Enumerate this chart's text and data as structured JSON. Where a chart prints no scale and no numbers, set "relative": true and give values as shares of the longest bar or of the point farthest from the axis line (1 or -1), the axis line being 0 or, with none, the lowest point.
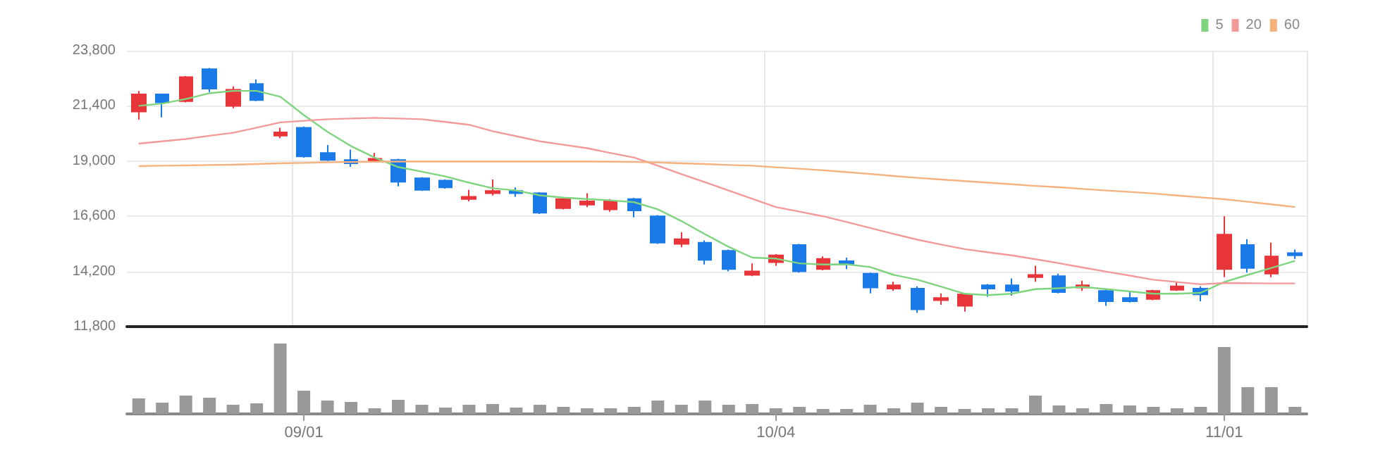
{
  "chart_data": [
    {
      "type": "candlestick",
      "categories": [
        null,
        null,
        null,
        null,
        null,
        null,
        null,
        null,
        null,
        null,
        null,
        null,
        null,
        null,
        null,
        null,
        null,
        null,
        null,
        null,
        null,
        null,
        null,
        null,
        null,
        null,
        null,
        null,
        null,
        null,
        null,
        null,
        null,
        null,
        null,
        null,
        null,
        null,
        null,
        null,
        null,
        null,
        null,
        null,
        null,
        null,
        null,
        null,
        null,
        null
      ],
      "ohlc": [
        [
          21150,
          22050,
          20800,
          21900
        ],
        [
          21900,
          21900,
          20900,
          21550
        ],
        [
          21600,
          22700,
          21550,
          22650
        ],
        [
          23000,
          23050,
          22000,
          22150
        ],
        [
          21400,
          22250,
          21300,
          22100
        ],
        [
          22350,
          22550,
          21600,
          21650
        ],
        [
          20100,
          20450,
          20000,
          20250
        ],
        [
          20450,
          20500,
          19150,
          19200
        ],
        [
          19350,
          19700,
          19000,
          19050
        ],
        [
          19050,
          19500,
          18750,
          18900
        ],
        [
          19000,
          19350,
          18950,
          19100
        ],
        [
          19050,
          19100,
          17900,
          18100
        ],
        [
          18250,
          18300,
          17700,
          17750
        ],
        [
          18150,
          18200,
          17800,
          17850
        ],
        [
          17350,
          17750,
          17250,
          17450
        ],
        [
          17600,
          18200,
          17500,
          17700
        ],
        [
          17700,
          17850,
          17450,
          17600
        ],
        [
          17600,
          17650,
          16700,
          16750
        ],
        [
          16950,
          17400,
          16900,
          17350
        ],
        [
          17100,
          17600,
          17000,
          17250
        ],
        [
          16900,
          17350,
          16800,
          17250
        ],
        [
          17350,
          17400,
          16550,
          16850
        ],
        [
          16600,
          16650,
          15400,
          15450
        ],
        [
          15400,
          15900,
          15250,
          15600
        ],
        [
          15450,
          15550,
          14500,
          14700
        ],
        [
          15100,
          15150,
          14200,
          14300
        ],
        [
          14050,
          14550,
          14000,
          14200
        ],
        [
          14600,
          14950,
          14450,
          14900
        ],
        [
          15350,
          15400,
          14150,
          14200
        ],
        [
          14300,
          14850,
          14250,
          14750
        ],
        [
          14650,
          14800,
          14300,
          14500
        ],
        [
          14100,
          14150,
          13250,
          13500
        ],
        [
          13450,
          13750,
          13350,
          13600
        ],
        [
          13450,
          13550,
          12400,
          12550
        ],
        [
          12950,
          13250,
          12750,
          13050
        ],
        [
          12700,
          13250,
          12450,
          13200
        ],
        [
          13600,
          13650,
          13100,
          13450
        ],
        [
          13600,
          13900,
          13150,
          13350
        ],
        [
          13950,
          14450,
          13750,
          14050
        ],
        [
          14000,
          14100,
          13250,
          13300
        ],
        [
          13500,
          13800,
          13350,
          13600
        ],
        [
          13350,
          13450,
          12700,
          12900
        ],
        [
          13050,
          13350,
          12850,
          12900
        ],
        [
          13000,
          13400,
          12950,
          13350
        ],
        [
          13400,
          13750,
          13350,
          13550
        ],
        [
          13450,
          13550,
          12900,
          13200
        ],
        [
          14300,
          16600,
          13950,
          15800
        ],
        [
          15350,
          15600,
          14150,
          14350
        ],
        [
          14100,
          15450,
          13950,
          14850
        ],
        [
          15000,
          15150,
          14750,
          14900
        ]
      ],
      "colors": [
        "#e8353a",
        "#1a7be8",
        "#e8353a",
        "#1a7be8",
        "#e8353a",
        "#1a7be8",
        "#e8353a",
        "#1a7be8",
        "#1a7be8",
        "#1a7be8",
        "#e8353a",
        "#1a7be8",
        "#1a7be8",
        "#1a7be8",
        "#e8353a",
        "#e8353a",
        "#1a7be8",
        "#1a7be8",
        "#e8353a",
        "#e8353a",
        "#e8353a",
        "#1a7be8",
        "#1a7be8",
        "#e8353a",
        "#1a7be8",
        "#1a7be8",
        "#e8353a",
        "#e8353a",
        "#1a7be8",
        "#e8353a",
        "#1a7be8",
        "#1a7be8",
        "#e8353a",
        "#1a7be8",
        "#e8353a",
        "#e8353a",
        "#1a7be8",
        "#1a7be8",
        "#e8353a",
        "#1a7be8",
        "#e8353a",
        "#1a7be8",
        "#1a7be8",
        "#e8353a",
        "#e8353a",
        "#1a7be8",
        "#e8353a",
        "#1a7be8",
        "#e8353a",
        "#1a7be8"
      ],
      "series": [
        {
          "name": "5",
          "type": "line",
          "color": "#7fd47f",
          "values": [
            21400,
            21500,
            21700,
            21950,
            22050,
            22050,
            21800,
            21000,
            20270,
            19650,
            19150,
            18740,
            18540,
            18330,
            18060,
            17820,
            17720,
            17510,
            17410,
            17350,
            17290,
            17210,
            16900,
            16390,
            15820,
            15270,
            14800,
            14760,
            14550,
            14500,
            14510,
            14390,
            14050,
            13840,
            13540,
            13230,
            13170,
            13230,
            13430,
            13470,
            13530,
            13430,
            13330,
            13230,
            13230,
            13270,
            13740,
            14050,
            14350,
            14660
          ]
        },
        {
          "name": "20",
          "type": "line",
          "color": "#f29a9a",
          "values": [
            19760,
            19860,
            19960,
            20100,
            20230,
            20450,
            20680,
            20750,
            20820,
            20850,
            20880,
            20850,
            20820,
            20700,
            20580,
            20300,
            20080,
            19860,
            19710,
            19560,
            19350,
            19150,
            18800,
            18430,
            18080,
            17720,
            17360,
            17000,
            16800,
            16600,
            16350,
            16090,
            15830,
            15580,
            15370,
            15170,
            15030,
            14900,
            14730,
            14560,
            14370,
            14190,
            14020,
            13840,
            13740,
            13640,
            13700,
            13690,
            13680,
            13680
          ]
        },
        {
          "name": "60",
          "type": "line",
          "color": "#f5b27e",
          "values": [
            18780,
            18800,
            18810,
            18830,
            18840,
            18870,
            18900,
            18920,
            18950,
            18960,
            18970,
            18980,
            18980,
            18980,
            18980,
            18980,
            18980,
            18980,
            18980,
            18980,
            18970,
            18960,
            18940,
            18900,
            18870,
            18830,
            18800,
            18730,
            18670,
            18600,
            18520,
            18440,
            18350,
            18270,
            18200,
            18130,
            18060,
            17990,
            17920,
            17860,
            17790,
            17720,
            17660,
            17590,
            17500,
            17420,
            17340,
            17230,
            17120,
            17000
          ]
        }
      ],
      "ylim": [
        11800,
        23800
      ],
      "yticks": [
        {
          "value": 11800,
          "label": "11,800"
        },
        {
          "value": 14200,
          "label": "14,200"
        },
        {
          "value": 16600,
          "label": "16,600"
        },
        {
          "value": 19000,
          "label": "19,000"
        },
        {
          "value": 21400,
          "label": "21,400"
        },
        {
          "value": 23800,
          "label": "23,800"
        }
      ],
      "grid": true,
      "legend": "top right",
      "marker": "none",
      "tick_labels": "y"
    },
    {
      "type": "bar",
      "relative": true,
      "color": "#999999",
      "tick_labels": "x",
      "categories": [
        null,
        null,
        null,
        null,
        null,
        null,
        null,
        "09/01",
        null,
        null,
        null,
        null,
        null,
        null,
        null,
        null,
        null,
        null,
        null,
        null,
        null,
        null,
        null,
        null,
        null,
        null,
        null,
        "10/04",
        null,
        null,
        null,
        null,
        null,
        null,
        null,
        null,
        null,
        null,
        null,
        null,
        null,
        null,
        null,
        null,
        null,
        null,
        "11/01",
        null,
        null,
        null
      ],
      "values": [
        0.22,
        0.16,
        0.26,
        0.23,
        0.13,
        0.15,
        1,
        0.33,
        0.19,
        0.17,
        0.08,
        0.2,
        0.13,
        0.09,
        0.13,
        0.14,
        0.09,
        0.13,
        0.1,
        0.08,
        0.08,
        0.1,
        0.19,
        0.13,
        0.19,
        0.13,
        0.14,
        0.08,
        0.1,
        0.07,
        0.07,
        0.13,
        0.08,
        0.16,
        0.1,
        0.07,
        0.08,
        0.08,
        0.26,
        0.12,
        0.08,
        0.14,
        0.12,
        0.1,
        0.08,
        0.1,
        0.95,
        0.38,
        0.38,
        0.1
      ]
    }
  ]
}
